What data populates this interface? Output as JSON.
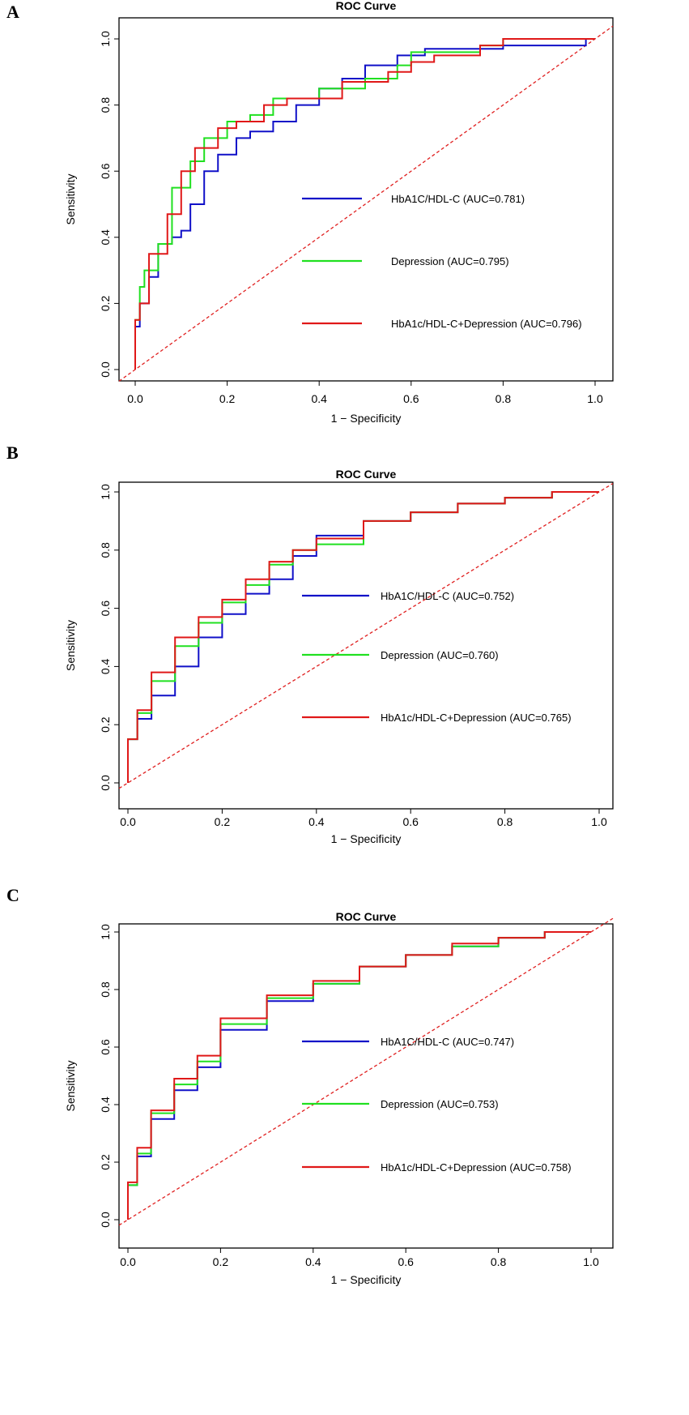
{
  "chart_data": [
    {
      "panel_label": "A",
      "type": "line",
      "title": "ROC Curve",
      "xlabel": "1 − Specificity",
      "ylabel": "Sensitivity",
      "xlim": [
        0,
        1
      ],
      "ylim": [
        0,
        1
      ],
      "xticks": [
        "0.0",
        "0.2",
        "0.4",
        "0.6",
        "0.8",
        "1.0"
      ],
      "yticks": [
        "0.0",
        "0.2",
        "0.4",
        "0.6",
        "0.8",
        "1.0"
      ],
      "legend_position": "center-right",
      "reference_line": {
        "color": "#e02020",
        "style": "dashed"
      },
      "series": [
        {
          "name": "HbA1C/HDL-C (AUC=0.781)",
          "color": "#1010c8",
          "x": [
            0,
            0.01,
            0.03,
            0.05,
            0.08,
            0.1,
            0.12,
            0.15,
            0.18,
            0.22,
            0.25,
            0.3,
            0.35,
            0.4,
            0.45,
            0.5,
            0.57,
            0.63,
            0.7,
            0.8,
            0.98,
            1
          ],
          "y": [
            0,
            0.13,
            0.2,
            0.28,
            0.38,
            0.4,
            0.42,
            0.5,
            0.6,
            0.65,
            0.7,
            0.72,
            0.75,
            0.8,
            0.85,
            0.88,
            0.92,
            0.95,
            0.97,
            0.97,
            0.98,
            1
          ]
        },
        {
          "name": "Depression (AUC=0.795)",
          "color": "#20e020",
          "x": [
            0,
            0.01,
            0.02,
            0.05,
            0.08,
            0.12,
            0.15,
            0.2,
            0.25,
            0.3,
            0.4,
            0.5,
            0.57,
            0.6,
            0.75,
            0.8,
            1
          ],
          "y": [
            0,
            0.15,
            0.25,
            0.3,
            0.38,
            0.55,
            0.63,
            0.7,
            0.75,
            0.77,
            0.82,
            0.85,
            0.88,
            0.92,
            0.96,
            0.98,
            1
          ]
        },
        {
          "name": "HbA1c/HDL-C+Depression (AUC=0.796)",
          "color": "#e01818",
          "x": [
            0,
            0.01,
            0.03,
            0.07,
            0.1,
            0.13,
            0.18,
            0.22,
            0.28,
            0.33,
            0.45,
            0.55,
            0.6,
            0.65,
            0.75,
            0.8,
            1
          ],
          "y": [
            0,
            0.15,
            0.2,
            0.35,
            0.47,
            0.6,
            0.67,
            0.73,
            0.75,
            0.8,
            0.82,
            0.87,
            0.9,
            0.93,
            0.95,
            0.98,
            1
          ]
        }
      ]
    },
    {
      "panel_label": "B",
      "type": "line",
      "title": "ROC Curve",
      "xlabel": "1 − Specificity",
      "ylabel": "Sensitivity",
      "xlim": [
        0,
        1
      ],
      "ylim": [
        0,
        1
      ],
      "xticks": [
        "0.0",
        "0.2",
        "0.4",
        "0.6",
        "0.8",
        "1.0"
      ],
      "yticks": [
        "0.0",
        "0.2",
        "0.4",
        "0.6",
        "0.8",
        "1.0"
      ],
      "legend_position": "center-right",
      "reference_line": {
        "color": "#e02020",
        "style": "dashed"
      },
      "series": [
        {
          "name": "HbA1C/HDL-C (AUC=0.752)",
          "color": "#1010c8",
          "x": [
            0,
            0.02,
            0.05,
            0.1,
            0.15,
            0.2,
            0.25,
            0.3,
            0.35,
            0.4,
            0.5,
            0.6,
            0.7,
            0.8,
            0.9,
            1
          ],
          "y": [
            0,
            0.15,
            0.22,
            0.3,
            0.4,
            0.5,
            0.58,
            0.65,
            0.7,
            0.78,
            0.85,
            0.9,
            0.93,
            0.96,
            0.98,
            1
          ]
        },
        {
          "name": "Depression (AUC=0.760)",
          "color": "#20e020",
          "x": [
            0,
            0.02,
            0.05,
            0.1,
            0.15,
            0.2,
            0.25,
            0.3,
            0.35,
            0.4,
            0.5,
            0.6,
            0.7,
            0.8,
            0.9,
            1
          ],
          "y": [
            0,
            0.15,
            0.24,
            0.35,
            0.47,
            0.55,
            0.62,
            0.68,
            0.75,
            0.8,
            0.82,
            0.9,
            0.93,
            0.96,
            0.98,
            1
          ]
        },
        {
          "name": "HbA1c/HDL-C+Depression (AUC=0.765)",
          "color": "#e01818",
          "x": [
            0,
            0.02,
            0.05,
            0.1,
            0.15,
            0.2,
            0.25,
            0.3,
            0.35,
            0.4,
            0.5,
            0.6,
            0.7,
            0.8,
            0.9,
            1
          ],
          "y": [
            0,
            0.15,
            0.25,
            0.38,
            0.5,
            0.57,
            0.63,
            0.7,
            0.76,
            0.8,
            0.84,
            0.9,
            0.93,
            0.96,
            0.98,
            1
          ]
        }
      ]
    },
    {
      "panel_label": "C",
      "type": "line",
      "title": "ROC Curve",
      "xlabel": "1 − Specificity",
      "ylabel": "Sensitivity",
      "xlim": [
        0,
        1
      ],
      "ylim": [
        0,
        1
      ],
      "xticks": [
        "0.0",
        "0.2",
        "0.4",
        "0.6",
        "0.8",
        "1.0"
      ],
      "yticks": [
        "0.0",
        "0.2",
        "0.4",
        "0.6",
        "0.8",
        "1.0"
      ],
      "legend_position": "center-right",
      "reference_line": {
        "color": "#e02020",
        "style": "dashed"
      },
      "series": [
        {
          "name": "HbA1C/HDL-C (AUC=0.747)",
          "color": "#1010c8",
          "x": [
            0,
            0.02,
            0.05,
            0.1,
            0.15,
            0.2,
            0.3,
            0.4,
            0.5,
            0.6,
            0.7,
            0.8,
            0.9,
            1
          ],
          "y": [
            0,
            0.12,
            0.22,
            0.35,
            0.45,
            0.53,
            0.66,
            0.76,
            0.82,
            0.88,
            0.92,
            0.95,
            0.98,
            1
          ]
        },
        {
          "name": "Depression (AUC=0.753)",
          "color": "#20e020",
          "x": [
            0,
            0.02,
            0.05,
            0.1,
            0.15,
            0.2,
            0.3,
            0.4,
            0.5,
            0.6,
            0.7,
            0.8,
            0.9,
            1
          ],
          "y": [
            0,
            0.12,
            0.23,
            0.37,
            0.47,
            0.55,
            0.68,
            0.77,
            0.82,
            0.88,
            0.92,
            0.95,
            0.98,
            1
          ]
        },
        {
          "name": "HbA1c/HDL-C+Depression (AUC=0.758)",
          "color": "#e01818",
          "x": [
            0,
            0.02,
            0.05,
            0.1,
            0.15,
            0.2,
            0.3,
            0.4,
            0.5,
            0.6,
            0.7,
            0.8,
            0.9,
            1
          ],
          "y": [
            0,
            0.13,
            0.25,
            0.38,
            0.49,
            0.57,
            0.7,
            0.78,
            0.83,
            0.88,
            0.92,
            0.96,
            0.98,
            1
          ]
        }
      ]
    }
  ]
}
